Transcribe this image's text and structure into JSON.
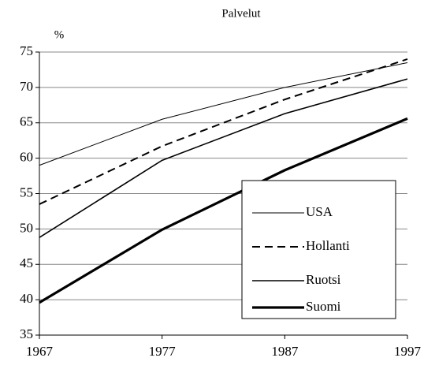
{
  "chart_data": {
    "type": "line",
    "title": "Palvelut",
    "y_label": "%",
    "x": [
      1967,
      1977,
      1987,
      1997
    ],
    "xlim": [
      1967,
      1997
    ],
    "xticks": [
      1967,
      1977,
      1987,
      1997
    ],
    "ylim": [
      35,
      75
    ],
    "yticks": [
      35,
      40,
      45,
      50,
      55,
      60,
      65,
      70,
      75
    ],
    "grid": true,
    "legend": "lower right",
    "series": [
      {
        "name": "USA",
        "color": "#000000",
        "line_width": 1,
        "dash": "none",
        "values": [
          59,
          65.5,
          70,
          73.5
        ]
      },
      {
        "name": "Hollanti",
        "color": "#000000",
        "line_width": 2,
        "dash": "10 6",
        "values": [
          53.5,
          61.7,
          68.3,
          74
        ]
      },
      {
        "name": "Ruotsi",
        "color": "#000000",
        "line_width": 1.6,
        "dash": "none",
        "values": [
          48.8,
          59.7,
          66.3,
          71.2
        ]
      },
      {
        "name": "Suomi",
        "color": "#000000",
        "line_width": 3.2,
        "dash": "none",
        "values": [
          39.6,
          49.9,
          58.3,
          65.6
        ]
      }
    ]
  }
}
